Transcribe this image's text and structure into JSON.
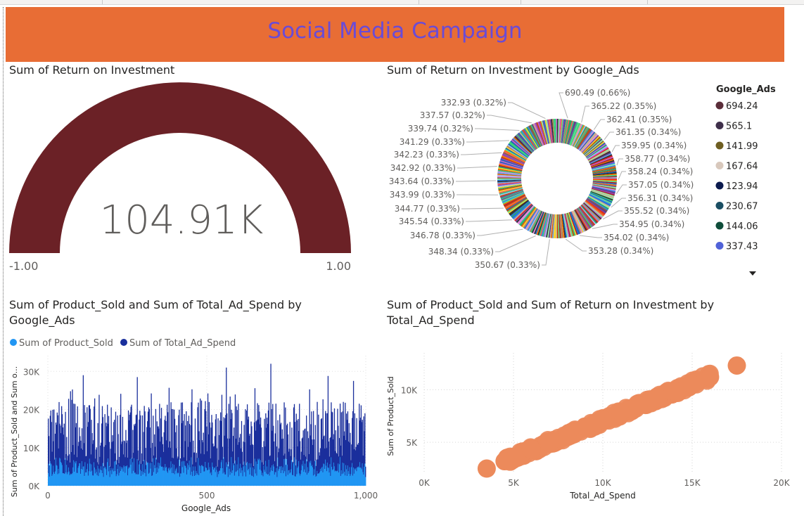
{
  "banner": {
    "title": "Social Media Campaign"
  },
  "gauge": {
    "title": "Sum of Return on Investment",
    "value_label": "104.91K",
    "min_label": "-1.00",
    "max_label": "1.00",
    "fill_color": "#6b2126"
  },
  "donut": {
    "title": "Sum of Return on Investment by Google_Ads",
    "legend_title": "Google_Ads",
    "legend": [
      {
        "label": "694.24",
        "color": "#5a2d39"
      },
      {
        "label": "565.1",
        "color": "#3e2f4a"
      },
      {
        "label": "141.99",
        "color": "#6e5e21"
      },
      {
        "label": "167.64",
        "color": "#d8c8bc"
      },
      {
        "label": "123.94",
        "color": "#0b1a4e"
      },
      {
        "label": "230.67",
        "color": "#1a4e63"
      },
      {
        "label": "144.06",
        "color": "#0f4d3a"
      },
      {
        "label": "337.43",
        "color": "#5062d8"
      }
    ],
    "labels_left": [
      "332.93 (0.32%)",
      "337.57 (0.32%)",
      "339.74 (0.32%)",
      "341.29 (0.33%)",
      "342.23 (0.33%)",
      "342.92 (0.33%)",
      "343.64 (0.33%)",
      "343.99 (0.33%)",
      "344.77 (0.33%)",
      "345.54 (0.33%)",
      "346.78 (0.33%)",
      "348.34 (0.33%)",
      "350.67 (0.33%)"
    ],
    "labels_right": [
      "690.49 (0.66%)",
      "365.22 (0.35%)",
      "362.41 (0.35%)",
      "361.35 (0.34%)",
      "359.95 (0.34%)",
      "358.77 (0.34%)",
      "358.24 (0.34%)",
      "357.05 (0.34%)",
      "356.31 (0.34%)",
      "355.52 (0.34%)",
      "354.95 (0.34%)",
      "354.02 (0.34%)",
      "353.28 (0.34%)"
    ]
  },
  "bar_chart": {
    "title_line1": "Sum of Product_Sold and Sum of Total_Ad_Spend by",
    "title_line2": "Google_Ads",
    "legend": [
      {
        "label": "Sum of Product_Sold",
        "color": "#2196f3"
      },
      {
        "label": "Sum of Total_Ad_Spend",
        "color": "#1a2f9c"
      }
    ],
    "ylabel": "Sum of Product_Sold and Sum o...",
    "xlabel": "Google_Ads",
    "yticks": [
      "0K",
      "10K",
      "20K",
      "30K"
    ],
    "xticks": [
      "0",
      "500",
      "1,000"
    ]
  },
  "scatter": {
    "title_line1": "Sum of Product_Sold and Sum of Return on Investment by",
    "title_line2": "Total_Ad_Spend",
    "ylabel": "Sum of Product_Sold",
    "xlabel": "Total_Ad_Spend",
    "yticks": [
      "5K",
      "10K"
    ],
    "xticks": [
      "0K",
      "5K",
      "10K",
      "15K",
      "20K"
    ],
    "color": "#ec8a5b"
  },
  "chart_data": [
    {
      "type": "gauge",
      "title": "Sum of Return on Investment",
      "value": 104910,
      "min": -1,
      "max": 1
    },
    {
      "type": "pie",
      "title": "Sum of Return on Investment by Google_Ads",
      "slices": [
        {
          "label": "690.49",
          "value": 690.49,
          "percent": 0.66
        },
        {
          "label": "365.22",
          "value": 365.22,
          "percent": 0.35
        },
        {
          "label": "362.41",
          "value": 362.41,
          "percent": 0.35
        },
        {
          "label": "361.35",
          "value": 361.35,
          "percent": 0.34
        },
        {
          "label": "359.95",
          "value": 359.95,
          "percent": 0.34
        },
        {
          "label": "358.77",
          "value": 358.77,
          "percent": 0.34
        },
        {
          "label": "358.24",
          "value": 358.24,
          "percent": 0.34
        },
        {
          "label": "357.05",
          "value": 357.05,
          "percent": 0.34
        },
        {
          "label": "356.31",
          "value": 356.31,
          "percent": 0.34
        },
        {
          "label": "355.52",
          "value": 355.52,
          "percent": 0.34
        },
        {
          "label": "354.95",
          "value": 354.95,
          "percent": 0.34
        },
        {
          "label": "354.02",
          "value": 354.02,
          "percent": 0.34
        },
        {
          "label": "353.28",
          "value": 353.28,
          "percent": 0.34
        },
        {
          "label": "350.67",
          "value": 350.67,
          "percent": 0.33
        },
        {
          "label": "348.34",
          "value": 348.34,
          "percent": 0.33
        },
        {
          "label": "346.78",
          "value": 346.78,
          "percent": 0.33
        },
        {
          "label": "345.54",
          "value": 345.54,
          "percent": 0.33
        },
        {
          "label": "344.77",
          "value": 344.77,
          "percent": 0.33
        },
        {
          "label": "343.99",
          "value": 343.99,
          "percent": 0.33
        },
        {
          "label": "343.64",
          "value": 343.64,
          "percent": 0.33
        },
        {
          "label": "342.92",
          "value": 342.92,
          "percent": 0.33
        },
        {
          "label": "342.23",
          "value": 342.23,
          "percent": 0.33
        },
        {
          "label": "341.29",
          "value": 341.29,
          "percent": 0.33
        },
        {
          "label": "339.74",
          "value": 339.74,
          "percent": 0.32
        },
        {
          "label": "337.57",
          "value": 337.57,
          "percent": 0.32
        },
        {
          "label": "332.93",
          "value": 332.93,
          "percent": 0.32
        }
      ]
    },
    {
      "type": "bar",
      "title": "Sum of Product_Sold and Sum of Total_Ad_Spend by Google_Ads",
      "xlabel": "Google_Ads",
      "ylabel": "Sum of Product_Sold and Sum o...",
      "stacked": true,
      "xlim": [
        0,
        1000
      ],
      "ylim": [
        0,
        33000
      ],
      "series": [
        {
          "name": "Sum of Product_Sold",
          "typical_range": [
            3000,
            12000
          ]
        },
        {
          "name": "Sum of Total_Ad_Spend",
          "typical_range": [
            5000,
            25000
          ]
        }
      ],
      "total_range": [
        5000,
        32000
      ],
      "highlights": [
        {
          "x": 70,
          "total": 24800
        },
        {
          "x": 110,
          "total": 29000
        },
        {
          "x": 280,
          "total": 28500
        },
        {
          "x": 560,
          "total": 31000
        },
        {
          "x": 700,
          "total": 32000
        },
        {
          "x": 880,
          "total": 28800
        },
        {
          "x": 960,
          "total": 27500
        }
      ]
    },
    {
      "type": "scatter",
      "title": "Sum of Product_Sold and Sum of Return on Investment by Total_Ad_Spend",
      "xlabel": "Total_Ad_Spend",
      "ylabel": "Sum of Product_Sold",
      "xlim": [
        0,
        20000
      ],
      "ylim": [
        2000,
        13500
      ],
      "points": [
        {
          "x": 3500,
          "y": 2500
        },
        {
          "x": 4500,
          "y": 3200
        },
        {
          "x": 5200,
          "y": 3700
        },
        {
          "x": 6000,
          "y": 4300
        },
        {
          "x": 7000,
          "y": 5000
        },
        {
          "x": 8000,
          "y": 5700
        },
        {
          "x": 9000,
          "y": 6500
        },
        {
          "x": 10000,
          "y": 7200
        },
        {
          "x": 11000,
          "y": 7900
        },
        {
          "x": 12000,
          "y": 8500
        },
        {
          "x": 13000,
          "y": 9200
        },
        {
          "x": 14000,
          "y": 9900
        },
        {
          "x": 15000,
          "y": 10500
        },
        {
          "x": 16000,
          "y": 11200
        },
        {
          "x": 17500,
          "y": 12300
        }
      ]
    }
  ]
}
